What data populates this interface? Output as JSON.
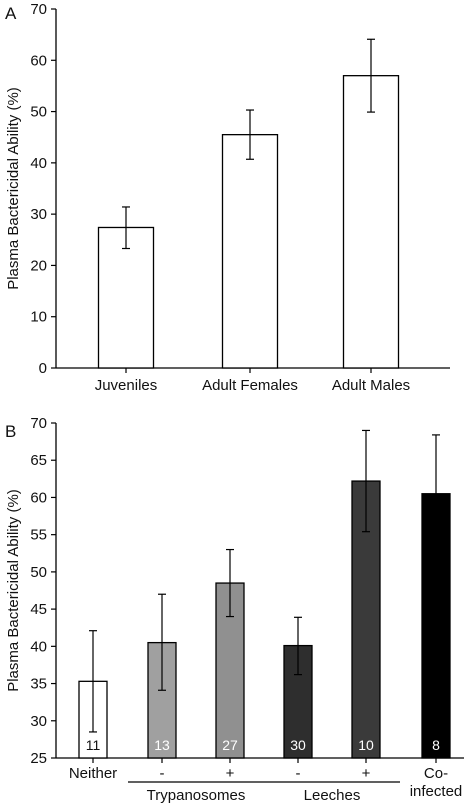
{
  "chart_data": [
    {
      "panel_label": "A",
      "type": "bar",
      "ylabel": "Plasma Bactericidal Ability (%)",
      "ylim": [
        0,
        70
      ],
      "yticks": [
        0,
        10,
        20,
        30,
        40,
        50,
        60,
        70
      ],
      "categories": [
        "Juveniles",
        "Adult Females",
        "Adult Males"
      ],
      "values": [
        27.4,
        45.5,
        57.0
      ],
      "error_low": [
        23.3,
        40.7,
        49.9
      ],
      "error_high": [
        31.4,
        50.3,
        64.1
      ],
      "bar_colors": [
        "#ffffff",
        "#ffffff",
        "#ffffff"
      ],
      "grid": false
    },
    {
      "panel_label": "B",
      "type": "bar",
      "ylabel": "Plasma Bactericidal Ability (%)",
      "ylim": [
        25,
        70
      ],
      "yticks": [
        25,
        30,
        35,
        40,
        45,
        50,
        55,
        60,
        65,
        70
      ],
      "categories": [
        "Neither",
        "-",
        "+",
        "-",
        "+",
        "Co-infected"
      ],
      "category_lines": [
        [
          "Neither"
        ],
        [
          "-"
        ],
        [
          "+"
        ],
        [
          "-"
        ],
        [
          "+"
        ],
        [
          "Co-",
          "infected"
        ]
      ],
      "values": [
        35.3,
        40.5,
        48.5,
        40.1,
        62.2,
        60.5
      ],
      "error_low": [
        28.5,
        34.1,
        44.0,
        36.2,
        55.4,
        52.4
      ],
      "error_high": [
        42.1,
        47.0,
        53.0,
        43.9,
        69.0,
        68.4
      ],
      "n_labels": [
        "11",
        "13",
        "27",
        "30",
        "10",
        "8"
      ],
      "bar_colors": [
        "#ffffff",
        "#a0a0a0",
        "#909090",
        "#2e2e2e",
        "#3a3a3a",
        "#000000"
      ],
      "groups": [
        {
          "label": "Trypanosomes",
          "members": [
            1,
            2
          ]
        },
        {
          "label": "Leeches",
          "members": [
            3,
            4
          ]
        }
      ],
      "grid": false
    }
  ]
}
